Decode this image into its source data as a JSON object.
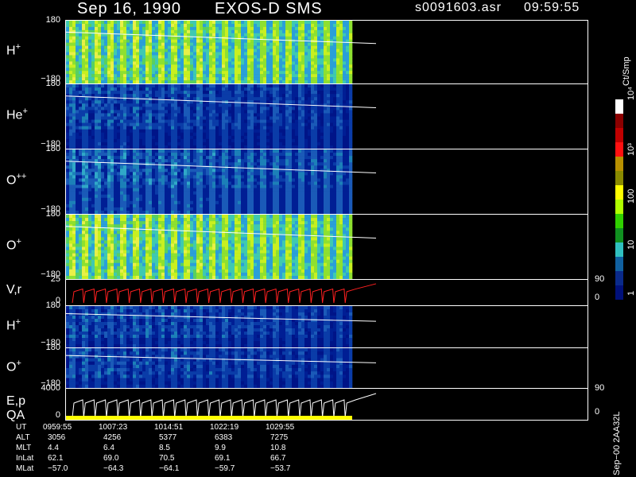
{
  "header": {
    "date": "Sep 16, 1990",
    "instrument": "EXOS-D SMS",
    "file": "s0091603.asr",
    "time": "09:59:55"
  },
  "panels": [
    {
      "key": "hp1",
      "label": "H",
      "sup": "+",
      "top": "180",
      "bottom": "−180"
    },
    {
      "key": "hep",
      "label": "He",
      "sup": "+",
      "top": "180",
      "bottom": "−180"
    },
    {
      "key": "opp",
      "label": "O",
      "sup": "++",
      "top": "180",
      "bottom": "−180"
    },
    {
      "key": "op1",
      "label": "O",
      "sup": "+",
      "top": "180",
      "bottom": "−180"
    },
    {
      "key": "vr",
      "label": "V,r",
      "sup": "",
      "top": "25",
      "bottom": "0",
      "rtop": "90",
      "rbottom": "0"
    },
    {
      "key": "hp2",
      "label": "H",
      "sup": "+",
      "top": "180",
      "bottom": "−180"
    },
    {
      "key": "op2",
      "label": "O",
      "sup": "+",
      "top": "180",
      "bottom": "−180"
    },
    {
      "key": "ep",
      "label": "E,p",
      "label2": "QA",
      "sup": "",
      "top": "4000",
      "bottom": "0",
      "rtop": "90",
      "rbottom": "0"
    }
  ],
  "colorbar": {
    "unit": "Ct/Smp",
    "labels": [
      "10⁴",
      "10³",
      "100",
      "10",
      "1"
    ],
    "colors": [
      "#ffffff",
      "#8b0000",
      "#c00000",
      "#ff1010",
      "#b89000",
      "#8a8a00",
      "#ffff00",
      "#b0ff00",
      "#30d000",
      "#109020",
      "#30c0c0",
      "#1060a0",
      "#0a2a8a",
      "#00107a"
    ]
  },
  "footer": {
    "rows": [
      {
        "label": "UT",
        "values": [
          "0959:55",
          "1007:23",
          "1014:51",
          "1022:19",
          "1029:55"
        ]
      },
      {
        "label": "ALT",
        "values": [
          "3056",
          "4256",
          "5377",
          "6383",
          "7275"
        ]
      },
      {
        "label": "MLT",
        "values": [
          "4.4",
          "6.4",
          "8.5",
          "9.9",
          "10.8"
        ]
      },
      {
        "label": "InLat",
        "values": [
          "62.1",
          "69.0",
          "70.5",
          "69.1",
          "66.7"
        ]
      },
      {
        "label": "MLat",
        "values": [
          "−57.0",
          "−64.3",
          "−64.1",
          "−59.7",
          "−53.7"
        ]
      }
    ],
    "stamp": "Sep−00 2AA32L"
  },
  "chart_data": {
    "type": "heatmap",
    "title": "Sep 16, 1990   EXOS-D SMS   s0091603.asr 09:59:55",
    "x_ticks": [
      "0959:55",
      "1007:23",
      "1014:51",
      "1022:19",
      "1029:55"
    ],
    "series": [
      {
        "name": "H+",
        "ylim": [
          -180,
          180
        ]
      },
      {
        "name": "He+",
        "ylim": [
          -180,
          180
        ]
      },
      {
        "name": "O++",
        "ylim": [
          -180,
          180
        ]
      },
      {
        "name": "O+",
        "ylim": [
          -180,
          180
        ]
      },
      {
        "name": "V,r",
        "ylim": [
          0,
          25
        ],
        "ylim_right": [
          0,
          90
        ]
      },
      {
        "name": "H+",
        "ylim": [
          -180,
          180
        ]
      },
      {
        "name": "O+",
        "ylim": [
          -180,
          180
        ]
      },
      {
        "name": "E,p",
        "ylim": [
          0,
          4000
        ],
        "ylim_right": [
          0,
          90
        ]
      }
    ],
    "colorscale": {
      "unit": "Ct/Smp",
      "range": [
        1,
        10000
      ],
      "scale": "log"
    }
  }
}
